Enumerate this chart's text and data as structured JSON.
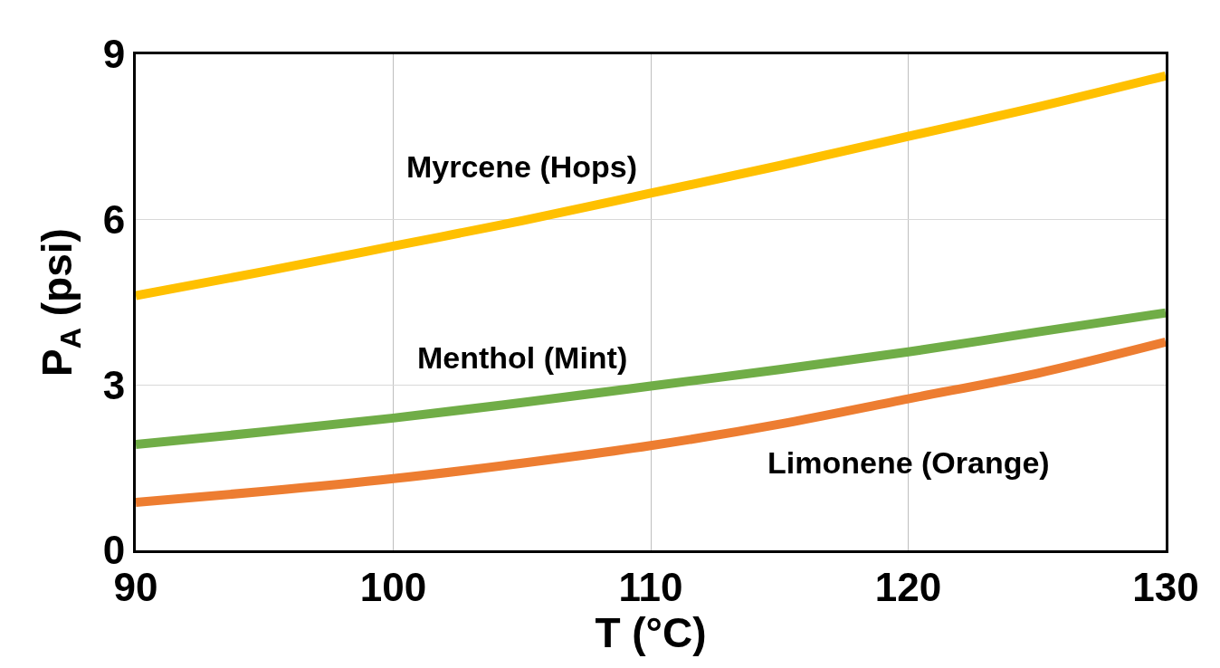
{
  "chart_data": {
    "type": "line",
    "xlabel": "T (°C)",
    "ylabel": "P$_{A}$ (psi)",
    "x": [
      90,
      95,
      100,
      105,
      110,
      115,
      120,
      125,
      130
    ],
    "series": [
      {
        "name": "Myrcene (Hops)",
        "color": "#ffc000",
        "values": [
          4.62,
          5.06,
          5.52,
          5.98,
          6.48,
          6.98,
          7.51,
          8.04,
          8.61
        ]
      },
      {
        "name": "Menthol (Mint)",
        "color": "#70ad47",
        "values": [
          1.92,
          2.15,
          2.4,
          2.68,
          2.98,
          3.28,
          3.6,
          3.96,
          4.31
        ]
      },
      {
        "name": "Limonene (Orange)",
        "color": "#ed7d31",
        "values": [
          0.87,
          1.07,
          1.3,
          1.58,
          1.9,
          2.29,
          2.75,
          3.21,
          3.78
        ]
      }
    ],
    "xlim": [
      90,
      130
    ],
    "xticks": [
      90,
      100,
      110,
      120,
      130
    ],
    "ylim": [
      0,
      9
    ],
    "yticks": [
      0,
      3,
      6,
      9
    ],
    "grid": true,
    "legend": false,
    "marker": "none",
    "line_style": "solid"
  }
}
